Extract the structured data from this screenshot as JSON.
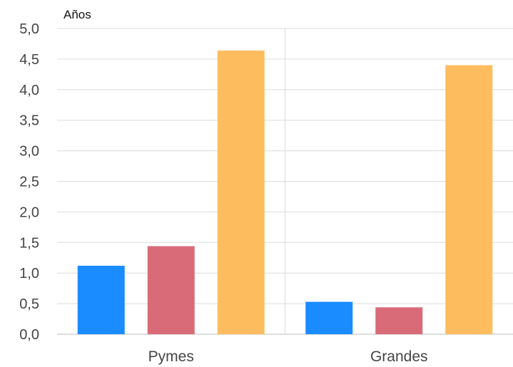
{
  "chart_data": {
    "type": "bar",
    "ylabel": "Años",
    "categories": [
      "Pymes",
      "Grandes"
    ],
    "series": [
      {
        "values": [
          1.12,
          0.53
        ],
        "color": "#1a8cff"
      },
      {
        "values": [
          1.44,
          0.44
        ],
        "color": "#d96b78"
      },
      {
        "values": [
          4.64,
          4.4
        ],
        "color": "#fdbd5f"
      }
    ],
    "ylim": [
      0,
      5
    ],
    "yticks": [
      "0,0",
      "0,5",
      "1,0",
      "1,5",
      "2,0",
      "2,5",
      "3,0",
      "3,5",
      "4,0",
      "4,5",
      "5,0"
    ],
    "grid": true,
    "legend": "none"
  }
}
